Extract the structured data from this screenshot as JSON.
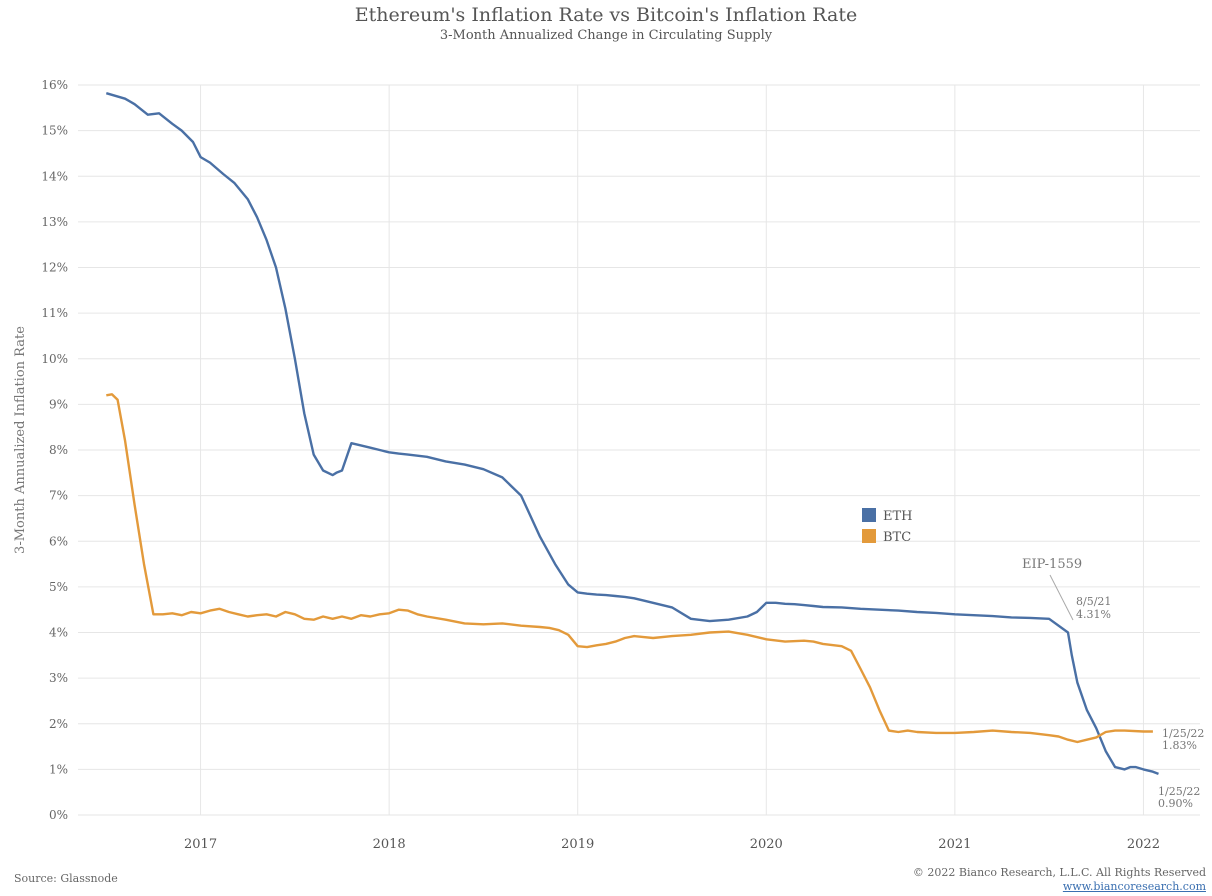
{
  "chart_data": {
    "type": "line",
    "title": "Ethereum's Inflation Rate vs Bitcoin's Inflation Rate",
    "subtitle": "3-Month Annualized Change in Circulating Supply",
    "ylabel": "3-Month Annualized Inflation Rate",
    "xlabel": "",
    "ylim": [
      0,
      16
    ],
    "xlim": [
      2016.35,
      2022.3
    ],
    "yticks": [
      "0%",
      "1%",
      "2%",
      "3%",
      "4%",
      "5%",
      "6%",
      "7%",
      "8%",
      "9%",
      "10%",
      "11%",
      "12%",
      "13%",
      "14%",
      "15%",
      "16%"
    ],
    "xticks": [
      "2017",
      "2018",
      "2019",
      "2020",
      "2021",
      "2022"
    ],
    "grid": true,
    "legend_position": "center-right",
    "series": [
      {
        "name": "ETH",
        "color": "#4a70a5",
        "x": [
          2016.5,
          2016.6,
          2016.65,
          2016.72,
          2016.78,
          2016.85,
          2016.9,
          2016.96,
          2017.0,
          2017.05,
          2017.12,
          2017.18,
          2017.25,
          2017.3,
          2017.35,
          2017.4,
          2017.45,
          2017.5,
          2017.55,
          2017.6,
          2017.65,
          2017.7,
          2017.72,
          2017.75,
          2017.8,
          2017.85,
          2017.9,
          2017.95,
          2017.98,
          2018.0,
          2018.05,
          2018.1,
          2018.2,
          2018.3,
          2018.4,
          2018.5,
          2018.6,
          2018.7,
          2018.8,
          2018.88,
          2018.95,
          2019.0,
          2019.05,
          2019.1,
          2019.15,
          2019.2,
          2019.25,
          2019.3,
          2019.35,
          2019.5,
          2019.6,
          2019.7,
          2019.8,
          2019.9,
          2019.95,
          2020.0,
          2020.05,
          2020.1,
          2020.15,
          2020.2,
          2020.25,
          2020.3,
          2020.4,
          2020.5,
          2020.6,
          2020.7,
          2020.8,
          2020.9,
          2021.0,
          2021.1,
          2021.2,
          2021.3,
          2021.4,
          2021.5,
          2021.6,
          2021.62,
          2021.65,
          2021.7,
          2021.75,
          2021.8,
          2021.85,
          2021.9,
          2021.93,
          2021.96,
          2022.0,
          2022.05,
          2022.08
        ],
        "values": [
          15.82,
          15.7,
          15.58,
          15.35,
          15.38,
          15.15,
          15.0,
          14.75,
          14.42,
          14.3,
          14.05,
          13.85,
          13.5,
          13.1,
          12.6,
          12.0,
          11.1,
          10.0,
          8.8,
          7.9,
          7.55,
          7.45,
          7.5,
          7.55,
          8.15,
          8.1,
          8.05,
          8.0,
          7.97,
          7.95,
          7.92,
          7.9,
          7.85,
          7.75,
          7.68,
          7.58,
          7.4,
          7.0,
          6.1,
          5.5,
          5.05,
          4.88,
          4.85,
          4.83,
          4.82,
          4.8,
          4.78,
          4.75,
          4.7,
          4.55,
          4.3,
          4.25,
          4.28,
          4.35,
          4.45,
          4.65,
          4.65,
          4.63,
          4.62,
          4.6,
          4.58,
          4.56,
          4.55,
          4.52,
          4.5,
          4.48,
          4.45,
          4.43,
          4.4,
          4.38,
          4.36,
          4.33,
          4.32,
          4.3,
          4.0,
          3.5,
          2.9,
          2.3,
          1.9,
          1.4,
          1.05,
          1.0,
          1.05,
          1.05,
          1.0,
          0.95,
          0.9
        ]
      },
      {
        "name": "BTC",
        "color": "#e39a3b",
        "x": [
          2016.5,
          2016.53,
          2016.56,
          2016.6,
          2016.65,
          2016.7,
          2016.75,
          2016.8,
          2016.85,
          2016.9,
          2016.95,
          2017.0,
          2017.05,
          2017.1,
          2017.15,
          2017.2,
          2017.25,
          2017.3,
          2017.35,
          2017.4,
          2017.45,
          2017.5,
          2017.55,
          2017.6,
          2017.65,
          2017.7,
          2017.75,
          2017.8,
          2017.85,
          2017.9,
          2017.95,
          2018.0,
          2018.05,
          2018.1,
          2018.15,
          2018.2,
          2018.3,
          2018.4,
          2018.5,
          2018.6,
          2018.7,
          2018.8,
          2018.85,
          2018.9,
          2018.95,
          2019.0,
          2019.05,
          2019.1,
          2019.15,
          2019.2,
          2019.25,
          2019.3,
          2019.35,
          2019.4,
          2019.5,
          2019.6,
          2019.7,
          2019.8,
          2019.9,
          2020.0,
          2020.1,
          2020.2,
          2020.25,
          2020.3,
          2020.4,
          2020.45,
          2020.5,
          2020.55,
          2020.6,
          2020.65,
          2020.7,
          2020.75,
          2020.8,
          2020.9,
          2021.0,
          2021.1,
          2021.2,
          2021.3,
          2021.4,
          2021.5,
          2021.55,
          2021.6,
          2021.65,
          2021.7,
          2021.75,
          2021.8,
          2021.85,
          2021.9,
          2022.0,
          2022.05
        ],
        "values": [
          9.2,
          9.22,
          9.1,
          8.2,
          6.8,
          5.5,
          4.4,
          4.4,
          4.42,
          4.38,
          4.45,
          4.42,
          4.48,
          4.52,
          4.45,
          4.4,
          4.35,
          4.38,
          4.4,
          4.35,
          4.45,
          4.4,
          4.3,
          4.28,
          4.35,
          4.3,
          4.35,
          4.3,
          4.38,
          4.35,
          4.4,
          4.42,
          4.5,
          4.48,
          4.4,
          4.35,
          4.28,
          4.2,
          4.18,
          4.2,
          4.15,
          4.12,
          4.1,
          4.05,
          3.95,
          3.7,
          3.68,
          3.72,
          3.75,
          3.8,
          3.88,
          3.92,
          3.9,
          3.88,
          3.92,
          3.95,
          4.0,
          4.02,
          3.95,
          3.85,
          3.8,
          3.82,
          3.8,
          3.75,
          3.7,
          3.6,
          3.2,
          2.8,
          2.3,
          1.85,
          1.82,
          1.85,
          1.82,
          1.8,
          1.8,
          1.82,
          1.85,
          1.82,
          1.8,
          1.75,
          1.72,
          1.65,
          1.6,
          1.65,
          1.7,
          1.82,
          1.85,
          1.85,
          1.83,
          1.83
        ]
      }
    ],
    "annotations": [
      {
        "id": "eip",
        "text": "EIP-1559"
      },
      {
        "id": "eth-aug",
        "lines": [
          "8/5/21",
          "4.31%"
        ]
      },
      {
        "id": "btc-end",
        "lines": [
          "1/25/22",
          "1.83%"
        ]
      },
      {
        "id": "eth-end",
        "lines": [
          "1/25/22",
          "0.90%"
        ]
      }
    ]
  },
  "footer": {
    "source": "Source: Glassnode",
    "copyright": "© 2022 Bianco Research, L.L.C. All Rights Reserved",
    "url": "www.biancoresearch.com"
  }
}
